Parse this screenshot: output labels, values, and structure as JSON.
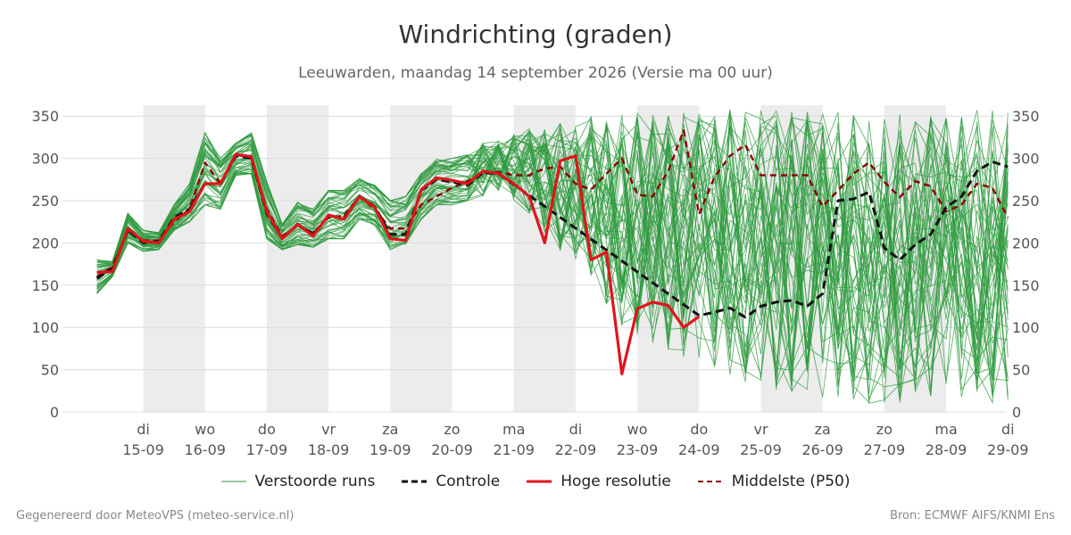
{
  "title": "Windrichting (graden)",
  "subtitle": "Leeuwarden, maandag 14 september 2026 (Versie ma 00 uur)",
  "footer_left": "Gegenereerd door MeteoVPS (meteo-service.nl)",
  "footer_right": "Bron: ECMWF AIFS/KNMI Ens",
  "colors": {
    "ensemble": "#2e9a3e",
    "control": "#111111",
    "hires": "#e0141b",
    "median": "#8b0000",
    "shade": "#ececec",
    "grid": "#dcdcdc"
  },
  "chart_data": {
    "type": "line",
    "title": "Windrichting (graden)",
    "ylim": [
      0,
      360
    ],
    "yticks": [
      0,
      50,
      100,
      150,
      200,
      250,
      300,
      350
    ],
    "xlim": [
      -0.75,
      15
    ],
    "xticks": [
      {
        "x": 0,
        "day": "di",
        "date": "15-09"
      },
      {
        "x": 1,
        "day": "wo",
        "date": "16-09"
      },
      {
        "x": 2,
        "day": "do",
        "date": "17-09"
      },
      {
        "x": 3,
        "day": "vr",
        "date": "18-09"
      },
      {
        "x": 4,
        "day": "za",
        "date": "19-09"
      },
      {
        "x": 5,
        "day": "zo",
        "date": "20-09"
      },
      {
        "x": 6,
        "day": "ma",
        "date": "21-09"
      },
      {
        "x": 7,
        "day": "di",
        "date": "22-09"
      },
      {
        "x": 8,
        "day": "wo",
        "date": "23-09"
      },
      {
        "x": 9,
        "day": "do",
        "date": "24-09"
      },
      {
        "x": 10,
        "day": "vr",
        "date": "25-09"
      },
      {
        "x": 11,
        "day": "za",
        "date": "26-09"
      },
      {
        "x": 12,
        "day": "zo",
        "date": "27-09"
      },
      {
        "x": 13,
        "day": "ma",
        "date": "28-09"
      },
      {
        "x": 14,
        "day": "di",
        "date": "29-09"
      }
    ],
    "shaded_days": [
      [
        0,
        1
      ],
      [
        2,
        3
      ],
      [
        4,
        5
      ],
      [
        6,
        7
      ],
      [
        8,
        9
      ],
      [
        10,
        11
      ],
      [
        12,
        13
      ]
    ],
    "legend_position": "bottom",
    "series": [
      {
        "name": "Hoge resolutie",
        "points": [
          [
            -0.75,
            165
          ],
          [
            -0.5,
            166
          ],
          [
            -0.25,
            217
          ],
          [
            0,
            202
          ],
          [
            0.25,
            200
          ],
          [
            0.5,
            228
          ],
          [
            0.75,
            237
          ],
          [
            1,
            270
          ],
          [
            1.25,
            270
          ],
          [
            1.5,
            305
          ],
          [
            1.75,
            302
          ],
          [
            2,
            237
          ],
          [
            2.25,
            205
          ],
          [
            2.5,
            222
          ],
          [
            2.75,
            208
          ],
          [
            3,
            233
          ],
          [
            3.25,
            228
          ],
          [
            3.5,
            255
          ],
          [
            3.75,
            242
          ],
          [
            4,
            205
          ],
          [
            4.25,
            203
          ],
          [
            4.5,
            263
          ],
          [
            4.75,
            277
          ],
          [
            5,
            274
          ],
          [
            5.25,
            270
          ],
          [
            5.5,
            285
          ],
          [
            5.75,
            282
          ],
          [
            6,
            270
          ],
          [
            6.25,
            255
          ],
          [
            6.5,
            200
          ],
          [
            6.75,
            297
          ],
          [
            7,
            303
          ],
          [
            7.25,
            180
          ],
          [
            7.5,
            189
          ],
          [
            7.75,
            45
          ],
          [
            8,
            122
          ],
          [
            8.25,
            130
          ],
          [
            8.5,
            126
          ],
          [
            8.75,
            100
          ],
          [
            9,
            113
          ]
        ]
      },
      {
        "name": "Controle",
        "points": [
          [
            -0.75,
            158
          ],
          [
            -0.5,
            170
          ],
          [
            -0.25,
            215
          ],
          [
            0,
            200
          ],
          [
            0.25,
            202
          ],
          [
            0.5,
            230
          ],
          [
            0.75,
            240
          ],
          [
            1,
            270
          ],
          [
            1.25,
            270
          ],
          [
            1.5,
            303
          ],
          [
            1.75,
            300
          ],
          [
            2,
            235
          ],
          [
            2.25,
            205
          ],
          [
            2.5,
            222
          ],
          [
            2.75,
            210
          ],
          [
            3,
            232
          ],
          [
            3.25,
            230
          ],
          [
            3.5,
            255
          ],
          [
            3.75,
            243
          ],
          [
            4,
            210
          ],
          [
            4.25,
            210
          ],
          [
            4.5,
            262
          ],
          [
            4.75,
            275
          ],
          [
            5,
            272
          ],
          [
            5.25,
            268
          ],
          [
            5.5,
            283
          ],
          [
            5.75,
            282
          ],
          [
            9,
            114
          ],
          [
            9.25,
            118
          ],
          [
            9.5,
            123
          ],
          [
            9.75,
            112
          ],
          [
            10,
            125
          ],
          [
            10.25,
            130
          ],
          [
            10.5,
            132
          ],
          [
            10.75,
            125
          ],
          [
            11,
            140
          ],
          [
            11.25,
            250
          ],
          [
            11.5,
            252
          ],
          [
            11.75,
            260
          ],
          [
            12,
            194
          ],
          [
            12.25,
            180
          ],
          [
            12.5,
            198
          ],
          [
            12.75,
            210
          ],
          [
            13,
            242
          ],
          [
            13.25,
            255
          ],
          [
            13.5,
            285
          ],
          [
            13.75,
            296
          ],
          [
            14,
            290
          ]
        ]
      },
      {
        "name": "Middelste (P50)",
        "points": [
          [
            -0.75,
            160
          ],
          [
            -0.5,
            172
          ],
          [
            -0.25,
            214
          ],
          [
            0,
            203
          ],
          [
            0.25,
            203
          ],
          [
            0.5,
            225
          ],
          [
            0.75,
            240
          ],
          [
            1,
            295
          ],
          [
            1.25,
            270
          ],
          [
            1.5,
            305
          ],
          [
            1.75,
            300
          ],
          [
            2,
            240
          ],
          [
            2.25,
            208
          ],
          [
            2.5,
            220
          ],
          [
            2.75,
            212
          ],
          [
            3,
            230
          ],
          [
            3.25,
            232
          ],
          [
            3.5,
            254
          ],
          [
            3.75,
            240
          ],
          [
            4,
            217
          ],
          [
            4.25,
            217
          ],
          [
            4.5,
            245
          ],
          [
            4.75,
            255
          ],
          [
            5,
            265
          ],
          [
            5.25,
            273
          ],
          [
            5.5,
            283
          ],
          [
            5.75,
            284
          ],
          [
            6,
            280
          ],
          [
            6.25,
            280
          ],
          [
            6.5,
            288
          ],
          [
            6.75,
            290
          ],
          [
            7,
            270
          ],
          [
            7.25,
            263
          ],
          [
            7.5,
            282
          ],
          [
            7.75,
            300
          ],
          [
            8,
            257
          ],
          [
            8.25,
            255
          ],
          [
            8.5,
            285
          ],
          [
            8.75,
            333
          ],
          [
            9,
            234
          ],
          [
            9.25,
            278
          ],
          [
            9.5,
            303
          ],
          [
            9.75,
            316
          ],
          [
            10,
            280
          ],
          [
            10.25,
            280
          ],
          [
            10.5,
            280
          ],
          [
            10.75,
            280
          ],
          [
            11,
            243
          ],
          [
            11.25,
            262
          ],
          [
            11.5,
            282
          ],
          [
            11.75,
            295
          ],
          [
            12,
            272
          ],
          [
            12.25,
            254
          ],
          [
            12.5,
            273
          ],
          [
            12.75,
            267
          ],
          [
            13,
            237
          ],
          [
            13.25,
            245
          ],
          [
            13.5,
            270
          ],
          [
            13.75,
            265
          ],
          [
            14,
            230
          ]
        ]
      },
      {
        "name": "Verstoorde runs",
        "members": 50,
        "step": 0.25,
        "envelope_min": [
          140,
          160,
          200,
          190,
          192,
          215,
          225,
          245,
          240,
          280,
          282,
          205,
          192,
          198,
          195,
          205,
          205,
          228,
          220,
          192,
          194,
          228,
          245,
          245,
          250,
          255,
          262,
          250,
          235,
          210,
          190,
          180,
          160,
          120,
          100,
          90,
          80,
          70,
          60,
          50,
          45,
          40,
          35,
          30,
          25,
          20,
          18,
          15,
          12,
          10,
          10,
          10,
          10,
          10,
          10,
          10,
          10,
          10,
          10,
          10
        ],
        "envelope_max": [
          180,
          178,
          235,
          215,
          212,
          245,
          270,
          330,
          300,
          318,
          330,
          272,
          222,
          248,
          240,
          262,
          262,
          276,
          268,
          250,
          255,
          282,
          300,
          300,
          304,
          318,
          322,
          330,
          335,
          340,
          342,
          348,
          350,
          352,
          355,
          356,
          358,
          358,
          358,
          358,
          358,
          358,
          358,
          358,
          358,
          358,
          358,
          358,
          358,
          358,
          358,
          358,
          358,
          358,
          358,
          358,
          358,
          358,
          358,
          358
        ]
      }
    ]
  },
  "legend": [
    {
      "label": "Verstoorde runs",
      "style": "thin-solid",
      "color": "#2e9a3e"
    },
    {
      "label": "Controle",
      "style": "dashed",
      "color": "#111111"
    },
    {
      "label": "Hoge resolutie",
      "style": "thick-solid",
      "color": "#e0141b"
    },
    {
      "label": "Middelste (P50)",
      "style": "dashed",
      "color": "#8b0000"
    }
  ]
}
